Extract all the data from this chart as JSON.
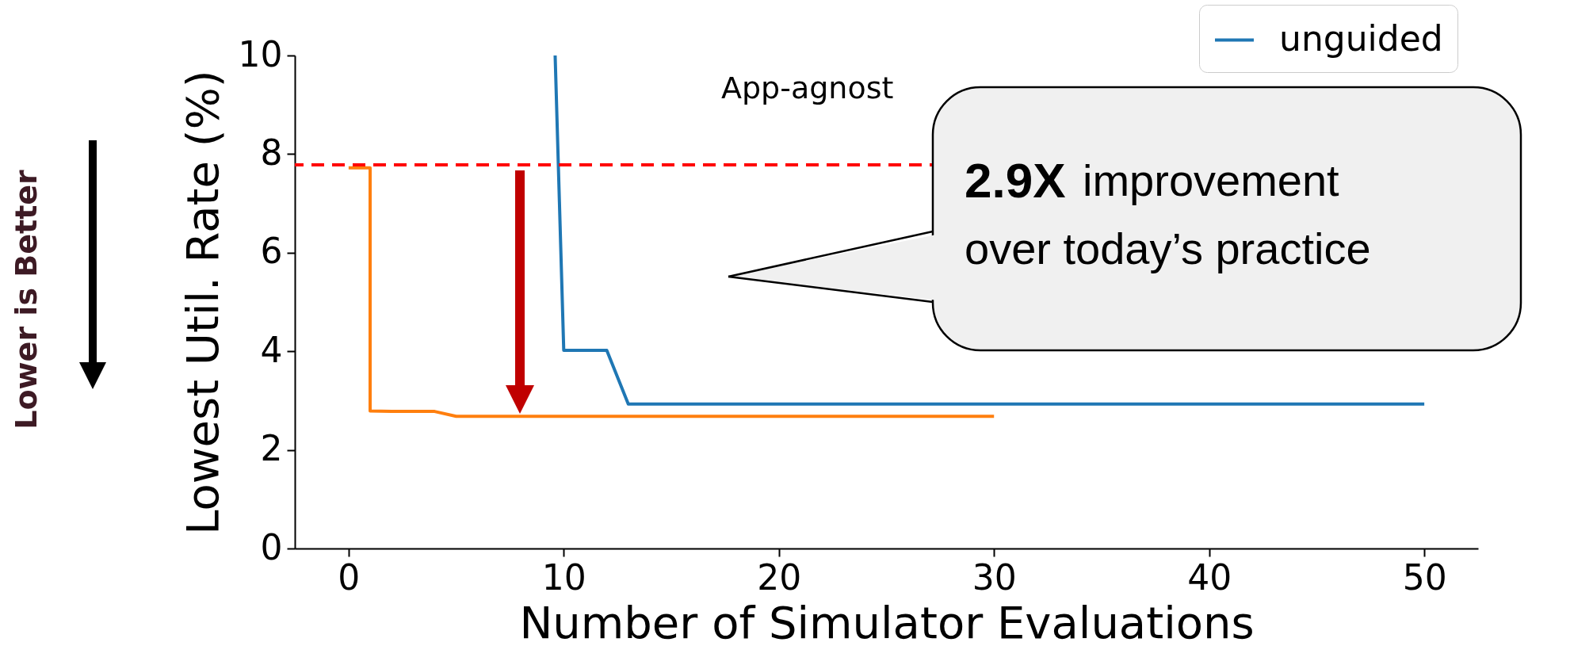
{
  "chart_data": {
    "type": "line",
    "xlabel": "Number of Simulator Evaluations",
    "ylabel": "Lowest Util. Rate (%)",
    "xlim": [
      -2.5,
      52.5
    ],
    "ylim": [
      0,
      10
    ],
    "xticks": [
      0,
      10,
      20,
      30,
      40,
      50
    ],
    "yticks": [
      0,
      2,
      4,
      6,
      8,
      10
    ],
    "grid": false,
    "legend": "top right",
    "marker": "none",
    "line_style": "solid",
    "series": [
      {
        "name": "unguided",
        "color": "#1f77b4",
        "x": [
          9.6,
          10,
          12,
          13,
          50
        ],
        "values": [
          10,
          4.02,
          4.02,
          2.93,
          2.93
        ]
      },
      {
        "color": "#ff7f0e",
        "x": [
          0,
          1,
          1,
          2,
          4,
          5,
          30
        ],
        "values": [
          7.72,
          7.72,
          2.79,
          2.78,
          2.78,
          2.68,
          2.68
        ]
      }
    ],
    "ref_lines": [
      {
        "axis": "y",
        "value": 7.78,
        "color": "#ff0000",
        "line_style": "dashed"
      }
    ],
    "annotations": [
      "App-agnost",
      "2.9X",
      "improvement",
      "over today’s practice",
      "Lower is Better"
    ]
  }
}
